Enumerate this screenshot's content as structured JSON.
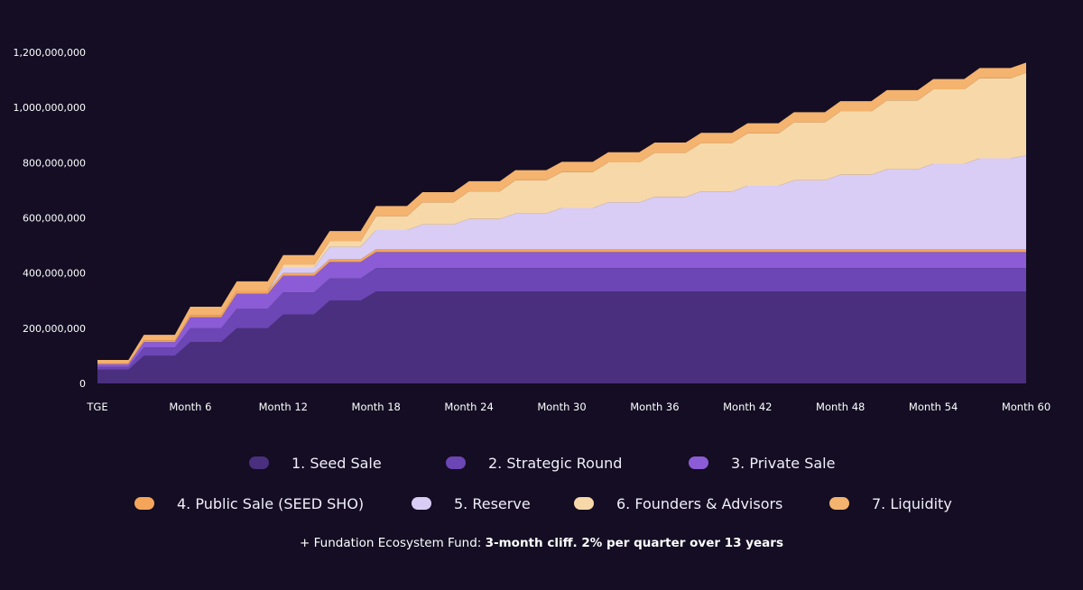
{
  "chart_data": {
    "type": "area",
    "stacked": true,
    "title": "",
    "xlabel": "",
    "ylabel": "",
    "x_range": [
      0,
      60
    ],
    "ylim": [
      0,
      1200000000
    ],
    "x_ticks": [
      {
        "value": 0,
        "label": "TGE"
      },
      {
        "value": 6,
        "label": "Month 6"
      },
      {
        "value": 12,
        "label": "Month 12"
      },
      {
        "value": 18,
        "label": "Month 18"
      },
      {
        "value": 24,
        "label": "Month 24"
      },
      {
        "value": 30,
        "label": "Month 30"
      },
      {
        "value": 36,
        "label": "Month 36"
      },
      {
        "value": 42,
        "label": "Month 42"
      },
      {
        "value": 48,
        "label": "Month 48"
      },
      {
        "value": 54,
        "label": "Month 54"
      },
      {
        "value": 60,
        "label": "Month 60"
      }
    ],
    "y_ticks": [
      {
        "value": 0,
        "label": "0"
      },
      {
        "value": 200000000,
        "label": "200,000,000"
      },
      {
        "value": 400000000,
        "label": "400,000,000"
      },
      {
        "value": 600000000,
        "label": "600,000,000"
      },
      {
        "value": 800000000,
        "label": "800,000,000"
      },
      {
        "value": 1000000000,
        "label": "1,000,000,000"
      },
      {
        "value": 1200000000,
        "label": "1,200,000,000"
      }
    ],
    "quarters": [
      0,
      3,
      6,
      9,
      12,
      15,
      18,
      21,
      24,
      27,
      30,
      33,
      36,
      39,
      42,
      45,
      48,
      51,
      54,
      57,
      60
    ],
    "series": [
      {
        "name": "1. Seed Sale",
        "color": "#4a2f7f",
        "values": [
          50000000,
          100000000,
          150000000,
          200000000,
          250000000,
          300000000,
          333000000,
          333000000,
          333000000,
          333000000,
          333000000,
          333000000,
          333000000,
          333000000,
          333000000,
          333000000,
          333000000,
          333000000,
          333000000,
          333000000,
          333000000
        ]
      },
      {
        "name": "2. Strategic Round",
        "color": "#6b46b4",
        "values": [
          10000000,
          30000000,
          50000000,
          70000000,
          80000000,
          80000000,
          85000000,
          85000000,
          85000000,
          85000000,
          85000000,
          85000000,
          85000000,
          85000000,
          85000000,
          85000000,
          85000000,
          85000000,
          85000000,
          85000000,
          85000000
        ]
      },
      {
        "name": "3. Private Sale",
        "color": "#8b5cd6",
        "values": [
          10000000,
          20000000,
          40000000,
          55000000,
          60000000,
          60000000,
          58000000,
          58000000,
          58000000,
          58000000,
          58000000,
          58000000,
          58000000,
          58000000,
          58000000,
          58000000,
          58000000,
          58000000,
          58000000,
          58000000,
          58000000
        ]
      },
      {
        "name": "4. Public Sale (SEED SHO)",
        "color": "#f4a55a",
        "values": [
          5000000,
          6000000,
          8000000,
          10000000,
          10000000,
          10000000,
          10000000,
          10000000,
          10000000,
          10000000,
          10000000,
          10000000,
          10000000,
          10000000,
          10000000,
          10000000,
          10000000,
          10000000,
          10000000,
          10000000,
          10000000
        ]
      },
      {
        "name": "5. Reserve",
        "color": "#d9ccf5",
        "values": [
          0,
          0,
          0,
          0,
          20000000,
          45000000,
          70000000,
          90000000,
          110000000,
          130000000,
          150000000,
          170000000,
          190000000,
          210000000,
          230000000,
          250000000,
          270000000,
          290000000,
          310000000,
          330000000,
          340000000
        ]
      },
      {
        "name": "6. Founders & Advisors",
        "color": "#f7d8a8",
        "values": [
          0,
          0,
          0,
          0,
          10000000,
          20000000,
          50000000,
          80000000,
          100000000,
          120000000,
          130000000,
          145000000,
          160000000,
          175000000,
          190000000,
          210000000,
          230000000,
          250000000,
          270000000,
          290000000,
          300000000
        ]
      },
      {
        "name": "7. Liquidity",
        "color": "#f4b36e",
        "values": [
          10000000,
          20000000,
          30000000,
          35000000,
          35000000,
          37000000,
          37000000,
          37000000,
          37000000,
          37000000,
          37000000,
          37000000,
          37000000,
          37000000,
          37000000,
          37000000,
          37000000,
          37000000,
          37000000,
          37000000,
          37000000
        ]
      }
    ]
  },
  "legend": {
    "row1": [
      {
        "label": "1. Seed Sale",
        "color": "#4a2f7f"
      },
      {
        "label": "2. Strategic Round",
        "color": "#6b46b4"
      },
      {
        "label": "3. Private Sale",
        "color": "#8b5cd6"
      }
    ],
    "row2": [
      {
        "label": "4. Public Sale (SEED SHO)",
        "color": "#f4a55a"
      },
      {
        "label": "5. Reserve",
        "color": "#d9ccf5"
      },
      {
        "label": "6. Founders & Advisors",
        "color": "#f7d8a8"
      },
      {
        "label": "7. Liquidity",
        "color": "#f4b36e"
      }
    ]
  },
  "footnote": {
    "prefix": "+ Fundation Ecosystem Fund: ",
    "bold": "3-month cliff. 2% per quarter over 13 years"
  }
}
